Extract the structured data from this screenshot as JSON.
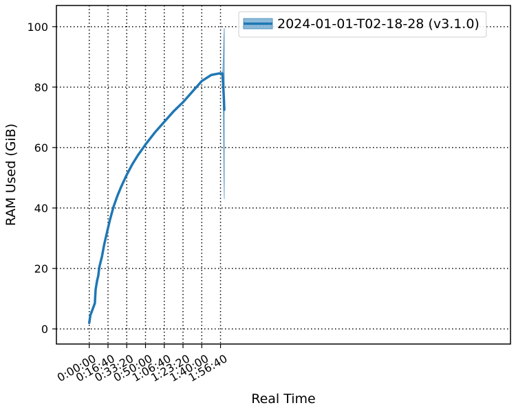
{
  "chart_data": {
    "type": "line",
    "title": "",
    "xlabel": "Real Time",
    "ylabel": "RAM Used (GiB)",
    "x_unit": "seconds of elapsed real time",
    "xlim": [
      -1750,
      22460
    ],
    "ylim": [
      -5,
      107
    ],
    "grid": true,
    "grid_style": "dotted",
    "legend_position": "top-right",
    "x_ticks": [
      {
        "value": 0,
        "label": "0:00:00"
      },
      {
        "value": 1000,
        "label": "0:16:40"
      },
      {
        "value": 2000,
        "label": "0:33:20"
      },
      {
        "value": 3000,
        "label": "0:50:00"
      },
      {
        "value": 4000,
        "label": "1:06:40"
      },
      {
        "value": 5000,
        "label": "1:23:20"
      },
      {
        "value": 6000,
        "label": "1:40:00"
      },
      {
        "value": 7000,
        "label": "1:56:40"
      }
    ],
    "y_ticks": [
      {
        "value": 0,
        "label": "0"
      },
      {
        "value": 20,
        "label": "20"
      },
      {
        "value": 40,
        "label": "40"
      },
      {
        "value": 60,
        "label": "60"
      },
      {
        "value": 80,
        "label": "80"
      },
      {
        "value": 100,
        "label": "100"
      }
    ],
    "series": [
      {
        "name": "2024-01-01-T02-18-28 (v3.1.0)",
        "color": "#1f77b4",
        "x": [
          0,
          60,
          150,
          300,
          340,
          420,
          480,
          540,
          680,
          800,
          950,
          1100,
          1300,
          1500,
          1700,
          2000,
          2300,
          2600,
          3000,
          3500,
          4000,
          4500,
          5000,
          5500,
          6000,
          6500,
          6900,
          7100,
          7140,
          7180,
          7200
        ],
        "y": [
          2,
          4.5,
          6,
          8.5,
          13,
          16,
          17.5,
          20.5,
          24,
          28,
          32,
          36,
          40.5,
          44,
          47,
          51,
          54.5,
          57.5,
          61,
          65,
          68.5,
          72,
          75,
          78.5,
          82,
          84,
          84.5,
          84.5,
          81,
          76,
          72.5
        ],
        "band": {
          "x": [
            7080,
            7100,
            7120,
            7140,
            7160,
            7180,
            7200
          ],
          "upper": [
            84.5,
            84.5,
            85.5,
            88,
            92,
            97,
            99.5
          ],
          "lower": [
            84.5,
            84,
            82,
            76,
            65,
            50,
            43
          ]
        }
      }
    ]
  }
}
